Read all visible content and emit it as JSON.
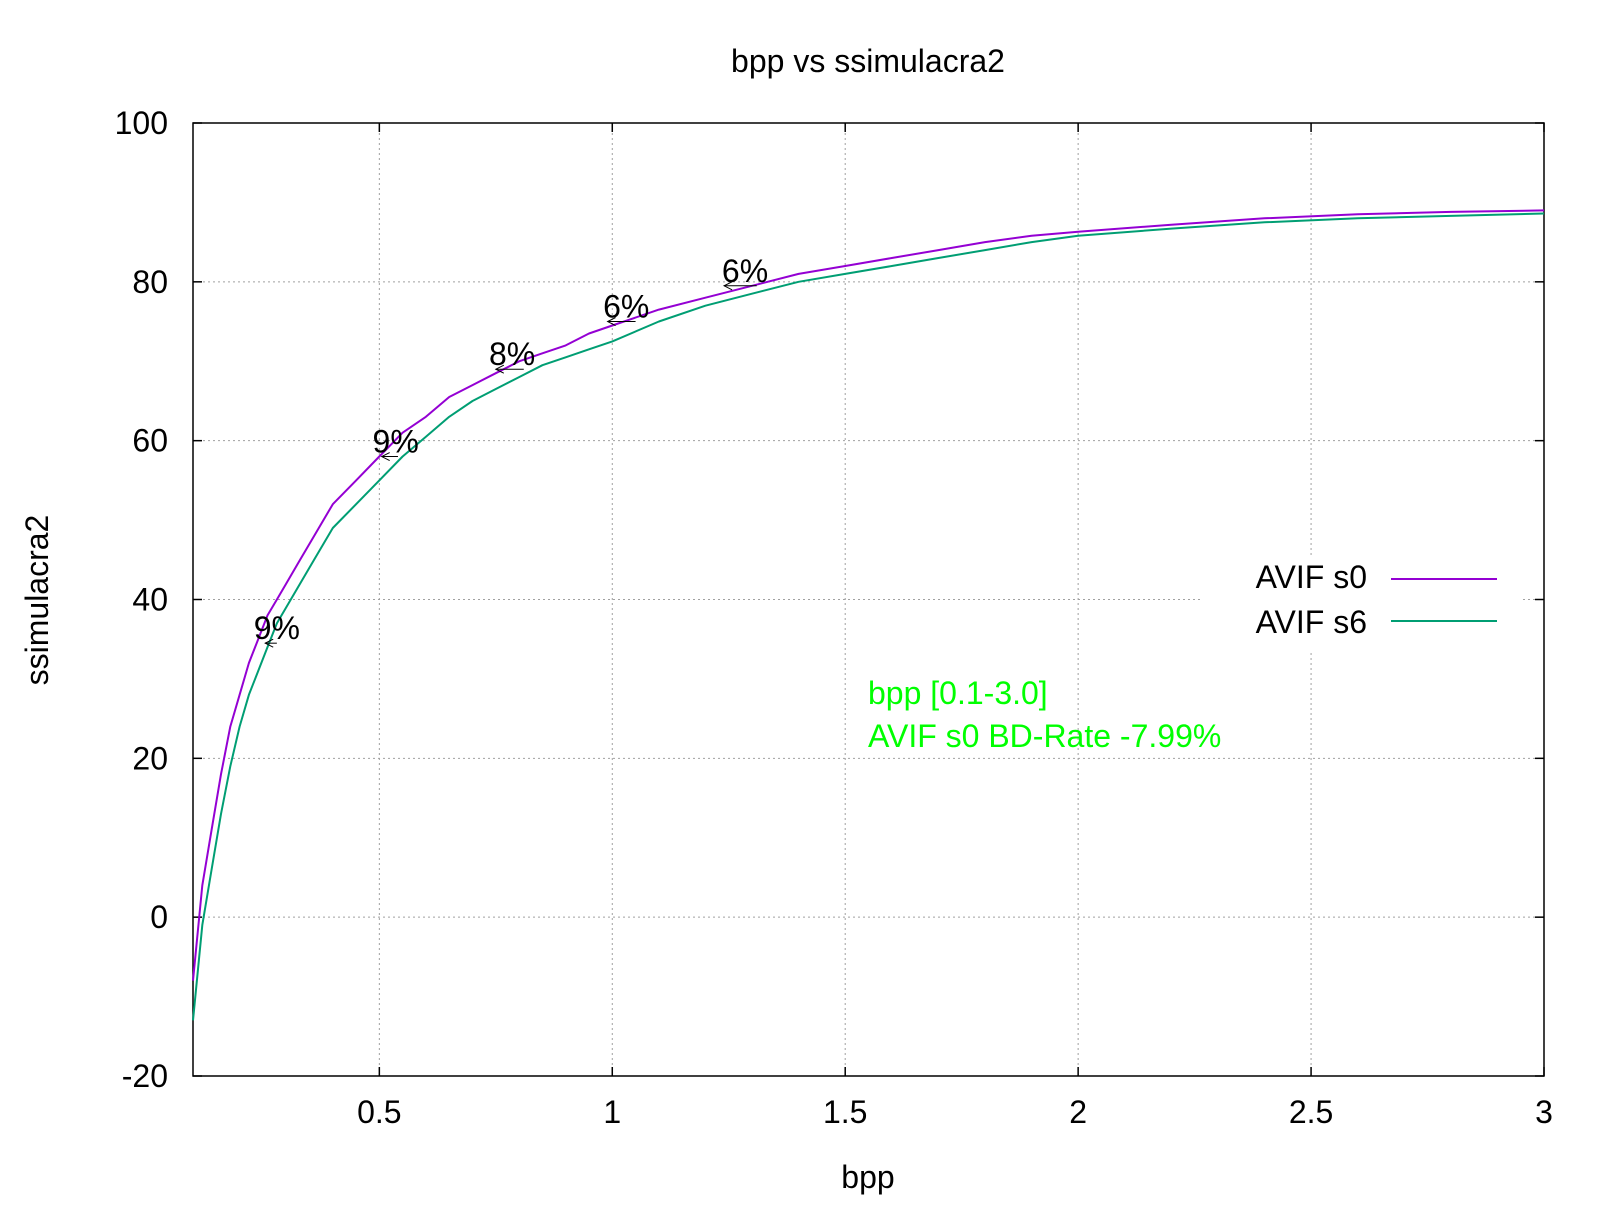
{
  "chart_data": {
    "type": "line",
    "title": "bpp vs ssimulacra2",
    "xlabel": "bpp",
    "ylabel": "ssimulacra2",
    "xlim": [
      0.1,
      3.0
    ],
    "ylim": [
      -20,
      100
    ],
    "x_ticks": [
      {
        "value": 0.5,
        "label": "0.5"
      },
      {
        "value": 1,
        "label": "1"
      },
      {
        "value": 1.5,
        "label": "1.5"
      },
      {
        "value": 2,
        "label": "2"
      },
      {
        "value": 2.5,
        "label": "2.5"
      },
      {
        "value": 3,
        "label": "3"
      }
    ],
    "y_ticks": [
      {
        "value": -20,
        "label": "-20"
      },
      {
        "value": 0,
        "label": "0"
      },
      {
        "value": 20,
        "label": "20"
      },
      {
        "value": 40,
        "label": "40"
      },
      {
        "value": 60,
        "label": "60"
      },
      {
        "value": 80,
        "label": "80"
      },
      {
        "value": 100,
        "label": "100"
      }
    ],
    "grid": true,
    "legend_position": "right",
    "series": [
      {
        "name": "AVIF s0",
        "color": "#9400d3",
        "x": [
          0.1,
          0.12,
          0.14,
          0.16,
          0.18,
          0.2,
          0.22,
          0.24,
          0.26,
          0.28,
          0.3,
          0.33,
          0.36,
          0.4,
          0.45,
          0.5,
          0.55,
          0.6,
          0.65,
          0.7,
          0.75,
          0.8,
          0.85,
          0.9,
          0.95,
          1.0,
          1.1,
          1.2,
          1.3,
          1.4,
          1.5,
          1.6,
          1.7,
          1.8,
          1.9,
          2.0,
          2.2,
          2.4,
          2.6,
          2.8,
          3.0
        ],
        "y": [
          -8,
          4,
          11,
          18,
          24,
          28,
          32,
          35,
          38,
          40,
          42,
          45,
          48,
          52,
          55,
          58,
          61,
          63,
          65.5,
          67,
          68.5,
          70,
          71,
          72,
          73.5,
          74.5,
          76.5,
          78,
          79.5,
          81,
          82,
          83,
          84,
          85,
          85.8,
          86.3,
          87.2,
          88,
          88.5,
          88.8,
          89
        ]
      },
      {
        "name": "AVIF s6",
        "color": "#009e73",
        "x": [
          0.1,
          0.12,
          0.14,
          0.16,
          0.18,
          0.2,
          0.22,
          0.24,
          0.26,
          0.28,
          0.3,
          0.33,
          0.36,
          0.4,
          0.45,
          0.5,
          0.55,
          0.6,
          0.65,
          0.7,
          0.75,
          0.8,
          0.85,
          0.9,
          0.95,
          1.0,
          1.1,
          1.2,
          1.3,
          1.4,
          1.5,
          1.6,
          1.7,
          1.8,
          1.9,
          2.0,
          2.2,
          2.4,
          2.6,
          2.8,
          3.0
        ],
        "y": [
          -13,
          -1,
          6,
          13,
          19,
          24,
          28,
          31,
          34,
          37,
          39,
          42,
          45,
          49,
          52,
          55,
          58,
          60.5,
          63,
          65,
          66.5,
          68,
          69.5,
          70.5,
          71.5,
          72.5,
          75,
          77,
          78.5,
          80,
          81,
          82,
          83,
          84,
          85,
          85.8,
          86.7,
          87.5,
          88,
          88.3,
          88.6
        ]
      }
    ],
    "annotations": [
      {
        "label": "9%",
        "x": 0.28,
        "y": 34.5,
        "x_from": 0.28,
        "x_to": 0.255
      },
      {
        "label": "9%",
        "x": 0.535,
        "y": 58,
        "x_from": 0.54,
        "x_to": 0.505
      },
      {
        "label": "8%",
        "x": 0.785,
        "y": 69,
        "x_from": 0.81,
        "x_to": 0.75
      },
      {
        "label": "6%",
        "x": 1.03,
        "y": 75,
        "x_from": 1.05,
        "x_to": 0.99
      },
      {
        "label": "6%",
        "x": 1.285,
        "y": 79.5,
        "x_from": 1.31,
        "x_to": 1.24
      }
    ],
    "info_text": [
      "bpp [0.1-3.0]",
      "AVIF s0 BD-Rate -7.99%"
    ],
    "info_color": "#00ff00"
  }
}
